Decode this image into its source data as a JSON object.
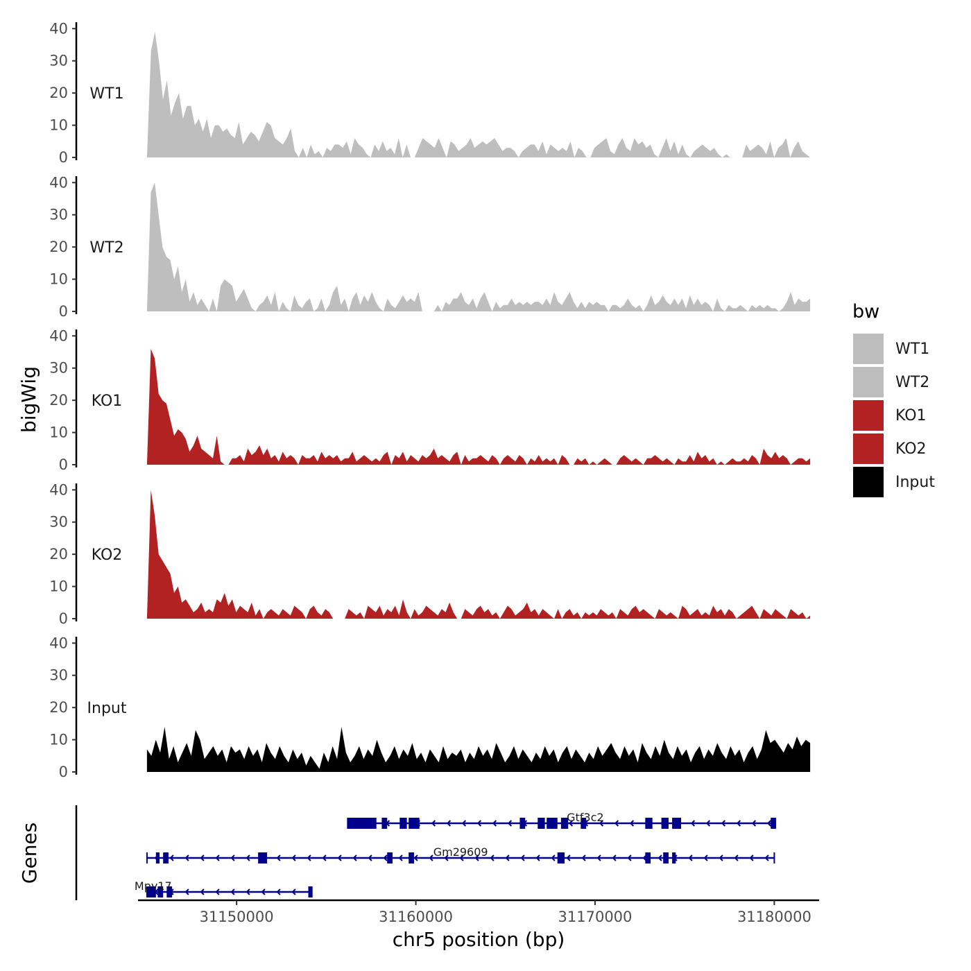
{
  "chart_data": {
    "type": "area",
    "title": "",
    "xlabel": "chr5 position (bp)",
    "ylabel": "bigWig",
    "gene_panel_label": "Genes",
    "xlim": [
      31144500,
      31182500
    ],
    "ylim": [
      0,
      42
    ],
    "x_ticks": [
      31150000,
      31160000,
      31170000,
      31180000
    ],
    "x_tick_labels": [
      "31150000",
      "31160000",
      "31170000",
      "31180000"
    ],
    "y_ticks": [
      0,
      10,
      20,
      30,
      40
    ],
    "y_tick_labels": [
      "0",
      "10",
      "20",
      "30",
      "40"
    ],
    "grid": false,
    "legend": {
      "title": "bw",
      "position": "right"
    },
    "signal_start": 31145000,
    "signal_end": 31182000,
    "series": [
      {
        "name": "WT1",
        "color": "#bebebe",
        "values": [
          0,
          33,
          39,
          30,
          18,
          24,
          13,
          17,
          20,
          12,
          16,
          16,
          10,
          12,
          8,
          12,
          6,
          10,
          10,
          8,
          9,
          7,
          6,
          11,
          4,
          6,
          8,
          7,
          5,
          8,
          11,
          10,
          6,
          5,
          4,
          6,
          9,
          2,
          0,
          3,
          0,
          4,
          1,
          2,
          0,
          3,
          2,
          4,
          4,
          3,
          5,
          1,
          6,
          4,
          3,
          1,
          0,
          4,
          2,
          5,
          2,
          3,
          1,
          6,
          0,
          4,
          0,
          0,
          3,
          6,
          5,
          4,
          3,
          6,
          3,
          0,
          5,
          4,
          2,
          3,
          4,
          6,
          3,
          4,
          5,
          4,
          5,
          6,
          4,
          2,
          3,
          3,
          2,
          0,
          2,
          3,
          4,
          4,
          2,
          5,
          1,
          4,
          3,
          2,
          3,
          2,
          5,
          0,
          3,
          2,
          0,
          0,
          3,
          4,
          5,
          6,
          2,
          1,
          4,
          6,
          3,
          2,
          6,
          4,
          5,
          3,
          4,
          1,
          0,
          3,
          6,
          2,
          5,
          1,
          4,
          1,
          0,
          2,
          3,
          4,
          3,
          2,
          3,
          1,
          0,
          1,
          0,
          0,
          0,
          0,
          4,
          2,
          3,
          4,
          3,
          1,
          5,
          0,
          3,
          4,
          6,
          0,
          3,
          5,
          2,
          1,
          0
        ]
      },
      {
        "name": "WT2",
        "color": "#bebebe",
        "values": [
          0,
          37,
          40,
          30,
          20,
          17,
          16,
          10,
          14,
          6,
          10,
          3,
          6,
          2,
          4,
          2,
          0,
          4,
          0,
          8,
          10,
          9,
          8,
          3,
          5,
          7,
          4,
          1,
          0,
          2,
          3,
          5,
          2,
          6,
          0,
          3,
          1,
          0,
          5,
          2,
          1,
          3,
          4,
          0,
          1,
          4,
          0,
          2,
          6,
          8,
          2,
          4,
          0,
          4,
          6,
          2,
          5,
          3,
          6,
          3,
          1,
          0,
          4,
          2,
          1,
          3,
          5,
          3,
          4,
          3,
          6,
          0,
          0,
          0,
          0,
          2,
          0,
          3,
          2,
          4,
          4,
          6,
          3,
          2,
          4,
          1,
          4,
          6,
          3,
          0,
          3,
          1,
          2,
          2,
          4,
          2,
          3,
          2,
          3,
          2,
          3,
          3,
          2,
          4,
          2,
          6,
          3,
          2,
          4,
          6,
          3,
          1,
          3,
          1,
          3,
          2,
          3,
          2,
          2,
          0,
          2,
          2,
          1,
          2,
          4,
          2,
          1,
          2,
          0,
          2,
          5,
          2,
          3,
          5,
          3,
          2,
          4,
          2,
          4,
          1,
          5,
          2,
          4,
          2,
          3,
          2,
          0,
          4,
          1,
          0,
          2,
          1,
          1,
          2,
          1,
          0,
          2,
          1,
          2,
          1,
          2,
          1,
          1,
          0,
          1,
          3,
          6,
          2,
          4,
          3,
          3,
          4
        ]
      },
      {
        "name": "KO1",
        "color": "#b22222",
        "values": [
          0,
          36,
          33,
          22,
          20,
          19,
          14,
          9,
          11,
          10,
          8,
          4,
          6,
          9,
          5,
          4,
          3,
          2,
          9,
          1,
          0,
          0,
          2,
          2,
          3,
          1,
          5,
          3,
          4,
          6,
          3,
          5,
          2,
          3,
          1,
          4,
          2,
          3,
          2,
          0,
          3,
          2,
          2,
          3,
          1,
          4,
          2,
          3,
          2,
          3,
          1,
          2,
          2,
          4,
          1,
          2,
          3,
          2,
          1,
          2,
          1,
          3,
          4,
          0,
          3,
          2,
          4,
          1,
          3,
          2,
          1,
          3,
          2,
          3,
          5,
          2,
          3,
          2,
          1,
          3,
          4,
          0,
          3,
          1,
          2,
          2,
          3,
          2,
          1,
          3,
          2,
          0,
          2,
          3,
          2,
          1,
          3,
          2,
          0,
          2,
          1,
          3,
          1,
          2,
          1,
          2,
          0,
          3,
          2,
          0,
          0,
          2,
          1,
          2,
          0,
          1,
          0,
          1,
          2,
          1,
          0,
          0,
          2,
          3,
          2,
          1,
          2,
          1,
          0,
          2,
          2,
          3,
          2,
          1,
          2,
          1,
          0,
          2,
          1,
          1,
          3,
          1,
          4,
          2,
          3,
          1,
          2,
          0,
          1,
          0,
          1,
          2,
          1,
          1,
          2,
          1,
          3,
          2,
          0,
          5,
          3,
          2,
          4,
          2,
          3,
          2,
          0,
          1,
          2,
          2,
          1,
          2
        ]
      },
      {
        "name": "KO2",
        "color": "#b22222",
        "values": [
          0,
          40,
          32,
          20,
          18,
          16,
          14,
          8,
          10,
          5,
          6,
          4,
          2,
          3,
          5,
          2,
          3,
          2,
          6,
          5,
          8,
          4,
          6,
          2,
          4,
          3,
          2,
          5,
          1,
          3,
          0,
          2,
          3,
          2,
          1,
          3,
          2,
          1,
          4,
          3,
          2,
          0,
          3,
          4,
          2,
          1,
          3,
          2,
          0,
          0,
          0,
          0,
          3,
          2,
          1,
          2,
          0,
          4,
          3,
          2,
          4,
          1,
          3,
          2,
          4,
          1,
          6,
          2,
          0,
          3,
          1,
          2,
          4,
          3,
          2,
          1,
          3,
          2,
          5,
          2,
          0,
          0,
          3,
          2,
          1,
          3,
          4,
          2,
          3,
          1,
          2,
          0,
          2,
          4,
          3,
          1,
          2,
          3,
          5,
          2,
          3,
          1,
          3,
          2,
          1,
          0,
          3,
          0,
          2,
          3,
          1,
          2,
          0,
          2,
          1,
          2,
          1,
          3,
          2,
          1,
          2,
          0,
          3,
          2,
          1,
          3,
          4,
          2,
          3,
          2,
          1,
          0,
          3,
          2,
          1,
          2,
          1,
          0,
          4,
          3,
          1,
          2,
          3,
          1,
          2,
          1,
          4,
          2,
          3,
          1,
          3,
          2,
          0,
          1,
          2,
          3,
          4,
          2,
          0,
          3,
          2,
          1,
          3,
          2,
          1,
          0,
          3,
          2,
          1,
          2,
          0,
          1
        ]
      },
      {
        "name": "Input",
        "color": "#000000",
        "values": [
          7,
          5,
          10,
          6,
          14,
          4,
          8,
          3,
          6,
          9,
          5,
          13,
          10,
          4,
          6,
          8,
          5,
          7,
          3,
          8,
          6,
          7,
          4,
          8,
          5,
          7,
          3,
          9,
          6,
          4,
          8,
          5,
          3,
          7,
          4,
          6,
          2,
          5,
          3,
          1,
          6,
          3,
          8,
          4,
          14,
          6,
          3,
          5,
          8,
          4,
          7,
          5,
          10,
          6,
          3,
          5,
          8,
          4,
          7,
          5,
          9,
          4,
          6,
          3,
          7,
          5,
          3,
          8,
          4,
          6,
          5,
          7,
          3,
          6,
          4,
          8,
          5,
          7,
          4,
          9,
          6,
          3,
          5,
          8,
          4,
          7,
          5,
          3,
          6,
          4,
          8,
          5,
          7,
          3,
          6,
          8,
          4,
          7,
          5,
          3,
          6,
          4,
          8,
          5,
          7,
          9,
          6,
          4,
          8,
          5,
          7,
          3,
          9,
          6,
          4,
          8,
          5,
          10,
          6,
          4,
          8,
          5,
          7,
          3,
          6,
          8,
          4,
          7,
          5,
          9,
          6,
          4,
          8,
          5,
          7,
          3,
          6,
          8,
          4,
          7,
          13,
          9,
          10,
          8,
          6,
          9,
          7,
          11,
          8,
          10,
          9
        ]
      }
    ],
    "genes": [
      {
        "name": "Gtf3c2",
        "start": 31156200,
        "end": 31180000,
        "strand": "-",
        "exons": [
          [
            31156200,
            31157800
          ],
          [
            31158100,
            31158400
          ],
          [
            31159100,
            31159500
          ],
          [
            31159600,
            31160200
          ],
          [
            31165800,
            31166100
          ],
          [
            31166800,
            31167200
          ],
          [
            31167300,
            31167900
          ],
          [
            31168100,
            31168500
          ],
          [
            31169200,
            31169500
          ],
          [
            31172800,
            31173200
          ],
          [
            31173700,
            31174100
          ],
          [
            31174300,
            31174800
          ],
          [
            31179800,
            31180100
          ]
        ]
      },
      {
        "name": "Gm29609",
        "start": 31145000,
        "end": 31180000,
        "strand": "-",
        "exons": [
          [
            31145500,
            31145700
          ],
          [
            31145900,
            31146200
          ],
          [
            31151200,
            31151700
          ],
          [
            31158400,
            31158700
          ],
          [
            31159600,
            31159900
          ],
          [
            31167900,
            31168300
          ],
          [
            31172800,
            31173100
          ],
          [
            31173800,
            31174100
          ],
          [
            31174300,
            31174500
          ]
        ]
      },
      {
        "name": "Mpv17",
        "start": 31145000,
        "end": 31154200,
        "strand": "-",
        "exons": [
          [
            31145000,
            31145500
          ],
          [
            31145600,
            31145900
          ],
          [
            31146100,
            31146400
          ],
          [
            31154000,
            31154200
          ]
        ]
      }
    ]
  }
}
